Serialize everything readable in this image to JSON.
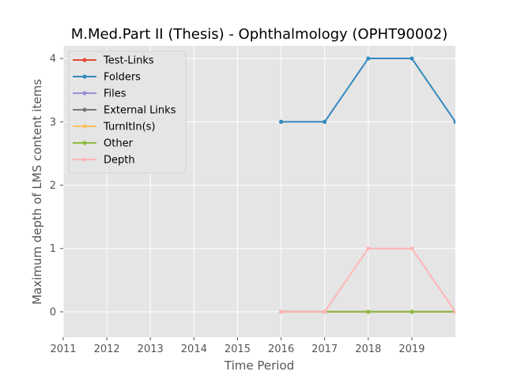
{
  "chart_data": {
    "type": "line",
    "title": "M.Med.Part II (Thesis) - Ophthalmology (OPHT90002)",
    "xlabel": "Time Period",
    "ylabel": "Maximum depth of LMS content items",
    "xlim": [
      2011,
      2020
    ],
    "ylim": [
      -0.4,
      4.2
    ],
    "xticks": [
      2011,
      2012,
      2013,
      2014,
      2015,
      2016,
      2017,
      2018,
      2019
    ],
    "yticks": [
      0,
      1,
      2,
      3,
      4
    ],
    "grid": true,
    "legend_position": "top-left",
    "x": [
      2016,
      2017,
      2018,
      2019,
      2020
    ],
    "series": [
      {
        "name": "Test-Links",
        "color": "#e24a33",
        "values": [
          0,
          0,
          0,
          0,
          0
        ]
      },
      {
        "name": "Folders",
        "color": "#348abd",
        "values": [
          3,
          3,
          4,
          4,
          3
        ]
      },
      {
        "name": "Files",
        "color": "#988ed5",
        "values": [
          0,
          0,
          0,
          0,
          0
        ]
      },
      {
        "name": "External Links",
        "color": "#777777",
        "values": [
          0,
          0,
          0,
          0,
          0
        ]
      },
      {
        "name": "TurnItIn(s)",
        "color": "#fbc15e",
        "values": [
          0,
          0,
          0,
          0,
          0
        ]
      },
      {
        "name": "Other",
        "color": "#8eba42",
        "values": [
          0,
          0,
          0,
          0,
          0
        ]
      },
      {
        "name": "Depth",
        "color": "#ffb5b8",
        "values": [
          0,
          0,
          1,
          1,
          0
        ]
      }
    ]
  }
}
